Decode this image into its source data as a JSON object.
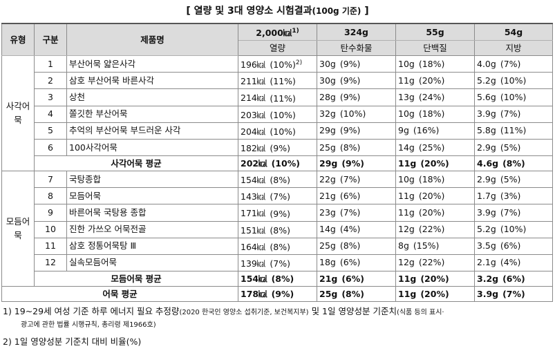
{
  "title": {
    "main": "[ 열량 및 3대 영양소 시험결과",
    "unit": "(100g 기준)",
    "end": " ]"
  },
  "header": {
    "col_type": "유형",
    "col_class": "구분",
    "col_name": "제품명",
    "col_kcal_top": "2,000㎉",
    "col_kcal_sup": "1)",
    "col_kcal": "열량",
    "col_carb_top": "324g",
    "col_carb": "탄수화물",
    "col_prot_top": "55g",
    "col_prot": "단백질",
    "col_fat_top": "54g",
    "col_fat": "지방"
  },
  "groups": [
    {
      "name": "사각어묵",
      "rows": [
        {
          "no": "1",
          "name": "부산어묵 얇은사각",
          "kcal": "196㎉",
          "kcal_pct": "(10%)",
          "kcal_sup": "2)",
          "carb": "30g",
          "carb_pct": "(9%)",
          "prot": "10g",
          "prot_pct": "(18%)",
          "fat": "4.0g",
          "fat_pct": "(7%)"
        },
        {
          "no": "2",
          "name": "삼호 부산어묵 바른사각",
          "kcal": "211㎉",
          "kcal_pct": "(11%)",
          "kcal_sup": "",
          "carb": "30g",
          "carb_pct": "(9%)",
          "prot": "11g",
          "prot_pct": "(20%)",
          "fat": "5.2g",
          "fat_pct": "(10%)"
        },
        {
          "no": "3",
          "name": "상천",
          "kcal": "214㎉",
          "kcal_pct": "(11%)",
          "kcal_sup": "",
          "carb": "28g",
          "carb_pct": "(9%)",
          "prot": "13g",
          "prot_pct": "(24%)",
          "fat": "5.6g",
          "fat_pct": "(10%)"
        },
        {
          "no": "4",
          "name": "쫄깃한 부산어묵",
          "kcal": "203㎉",
          "kcal_pct": "(10%)",
          "kcal_sup": "",
          "carb": "32g",
          "carb_pct": "(10%)",
          "prot": "10g",
          "prot_pct": "(18%)",
          "fat": "3.9g",
          "fat_pct": "(7%)"
        },
        {
          "no": "5",
          "name": "추억의 부산어묵 부드러운 사각",
          "kcal": "204㎉",
          "kcal_pct": "(10%)",
          "kcal_sup": "",
          "carb": "29g",
          "carb_pct": "(9%)",
          "prot": "9g",
          "prot_pct": "(16%)",
          "fat": "5.8g",
          "fat_pct": "(11%)"
        },
        {
          "no": "6",
          "name": "100사각어묵",
          "kcal": "182㎉",
          "kcal_pct": "(9%)",
          "kcal_sup": "",
          "carb": "25g",
          "carb_pct": "(8%)",
          "prot": "14g",
          "prot_pct": "(25%)",
          "fat": "2.9g",
          "fat_pct": "(5%)"
        }
      ],
      "avg": {
        "label": "사각어묵 평균",
        "kcal": "202㎉",
        "kcal_pct": "(10%)",
        "carb": "29g",
        "carb_pct": "(9%)",
        "prot": "11g",
        "prot_pct": "(20%)",
        "fat": "4.6g",
        "fat_pct": "(8%)"
      }
    },
    {
      "name": "모듬어묵",
      "rows": [
        {
          "no": "7",
          "name": "국탕종합",
          "kcal": "154㎉",
          "kcal_pct": "(8%)",
          "kcal_sup": "",
          "carb": "22g",
          "carb_pct": "(7%)",
          "prot": "10g",
          "prot_pct": "(18%)",
          "fat": "2.9g",
          "fat_pct": "(5%)"
        },
        {
          "no": "8",
          "name": "모듬어묵",
          "kcal": "143㎉",
          "kcal_pct": "(7%)",
          "kcal_sup": "",
          "carb": "21g",
          "carb_pct": "(6%)",
          "prot": "11g",
          "prot_pct": "(20%)",
          "fat": "1.7g",
          "fat_pct": "(3%)"
        },
        {
          "no": "9",
          "name": "바른어묵 국탕용 종합",
          "kcal": "171㎉",
          "kcal_pct": "(9%)",
          "kcal_sup": "",
          "carb": "23g",
          "carb_pct": "(7%)",
          "prot": "11g",
          "prot_pct": "(20%)",
          "fat": "3.9g",
          "fat_pct": "(7%)"
        },
        {
          "no": "10",
          "name": "진한 가쓰오 어묵전골",
          "kcal": "151㎉",
          "kcal_pct": "(8%)",
          "kcal_sup": "",
          "carb": "14g",
          "carb_pct": "(4%)",
          "prot": "12g",
          "prot_pct": "(22%)",
          "fat": "5.2g",
          "fat_pct": "(10%)"
        },
        {
          "no": "11",
          "name": "삼호 정통어묵탕 Ⅲ",
          "kcal": "164㎉",
          "kcal_pct": "(8%)",
          "kcal_sup": "",
          "carb": "25g",
          "carb_pct": "(8%)",
          "prot": "8g",
          "prot_pct": "(15%)",
          "fat": "3.5g",
          "fat_pct": "(6%)"
        },
        {
          "no": "12",
          "name": "실속모듬어묵",
          "kcal": "139㎉",
          "kcal_pct": "(7%)",
          "kcal_sup": "",
          "carb": "18g",
          "carb_pct": "(6%)",
          "prot": "12g",
          "prot_pct": "(22%)",
          "fat": "2.1g",
          "fat_pct": "(4%)"
        }
      ],
      "avg": {
        "label": "모듬어묵 평균",
        "kcal": "154㎉",
        "kcal_pct": "(8%)",
        "carb": "21g",
        "carb_pct": "(6%)",
        "prot": "11g",
        "prot_pct": "(20%)",
        "fat": "3.2g",
        "fat_pct": "(6%)"
      }
    }
  ],
  "total": {
    "label": "어묵 평균",
    "kcal": "178㎉",
    "kcal_pct": "(9%)",
    "carb": "25g",
    "carb_pct": "(8%)",
    "prot": "11g",
    "prot_pct": "(20%)",
    "fat": "3.9g",
    "fat_pct": "(7%)"
  },
  "footnotes": {
    "n1_a": "1)  19~29세 여성 기준 하루 에너지 필요 추정량",
    "n1_b": "(2020 한국인 영양소 섭취기준, 보건복지부)",
    "n1_c": " 및 1일 영양성분 기준치",
    "n1_d": "(식품 등의 표시·",
    "n1_e": "광고에 관한 법률 시행규칙, 총리령 제1966호)",
    "n2": "2)  1일 영양성분 기준치 대비 비율(%)"
  }
}
